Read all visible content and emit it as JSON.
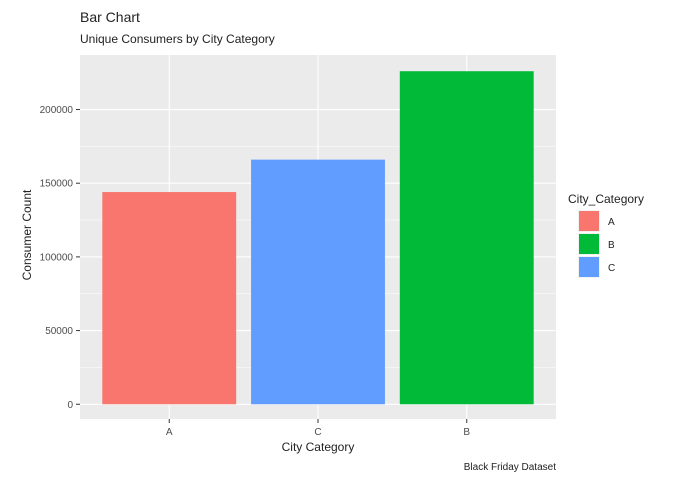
{
  "chart_data": {
    "type": "bar",
    "title": "Bar Chart",
    "subtitle": "Unique Consumers by City Category",
    "xlabel": "City Category",
    "ylabel": "Consumer Count",
    "caption": "Black Friday Dataset",
    "categories": [
      "A",
      "C",
      "B"
    ],
    "values": [
      144000,
      166000,
      226000
    ],
    "ylim": [
      -10000,
      237000
    ],
    "yticks": [
      0,
      50000,
      100000,
      150000,
      200000
    ],
    "ytick_labels": [
      "0",
      "50000",
      "100000",
      "150000",
      "200000"
    ],
    "grid": true,
    "legend": {
      "title": "City_Category",
      "position": "right",
      "entries": [
        {
          "label": "A",
          "color": "#F8766D"
        },
        {
          "label": "B",
          "color": "#00BA38"
        },
        {
          "label": "C",
          "color": "#619CFF"
        }
      ]
    },
    "bar_colors": {
      "A": "#F8766D",
      "B": "#00BA38",
      "C": "#619CFF"
    },
    "panel_background": "#ebebeb",
    "grid_color": "#ffffff"
  }
}
